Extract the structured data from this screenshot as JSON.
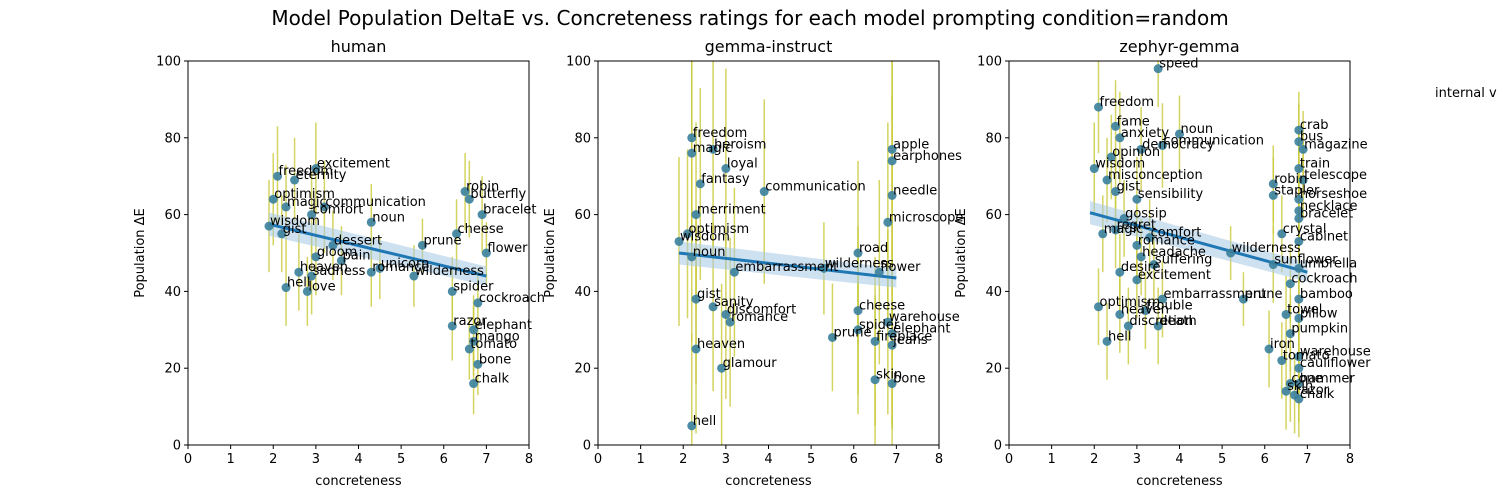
{
  "figure": {
    "suptitle": "Model Population DeltaE vs. Concreteness ratings for each model prompting condition=random",
    "overflow_text": "internal v",
    "colors": {
      "point": "#3a7f9c",
      "errorbar": "#c9c93a",
      "line": "#1f77b4",
      "band": "#a6c8e6"
    }
  },
  "chart_data": [
    {
      "type": "scatter",
      "title": "human",
      "xlabel": "concreteness",
      "ylabel": "Population ΔE",
      "xlim": [
        0,
        8
      ],
      "ylim": [
        0,
        100
      ],
      "xticks": [
        0,
        1,
        2,
        3,
        4,
        5,
        6,
        7,
        8
      ],
      "yticks": [
        0,
        20,
        40,
        60,
        80,
        100
      ],
      "regression": {
        "x": [
          1.9,
          7.0
        ],
        "y": [
          57.5,
          44.0
        ]
      },
      "points": [
        {
          "x": 2.1,
          "y": 70,
          "err": 13,
          "label": "freedom"
        },
        {
          "x": 3.0,
          "y": 72,
          "err": 12,
          "label": "excitement"
        },
        {
          "x": 2.5,
          "y": 69,
          "err": 11,
          "label": "eternity"
        },
        {
          "x": 2.0,
          "y": 64,
          "err": 12,
          "label": "optimism"
        },
        {
          "x": 2.3,
          "y": 62,
          "err": 11,
          "label": "magic"
        },
        {
          "x": 3.2,
          "y": 62,
          "err": 12,
          "label": "communication"
        },
        {
          "x": 2.9,
          "y": 60,
          "err": 11,
          "label": "comfort"
        },
        {
          "x": 1.9,
          "y": 57,
          "err": 12,
          "label": "wisdom"
        },
        {
          "x": 2.2,
          "y": 55,
          "err": 10,
          "label": "gist"
        },
        {
          "x": 4.3,
          "y": 58,
          "err": 10,
          "label": "noun"
        },
        {
          "x": 3.4,
          "y": 52,
          "err": 9,
          "label": "dessert"
        },
        {
          "x": 3.6,
          "y": 48,
          "err": 9,
          "label": "pain"
        },
        {
          "x": 3.0,
          "y": 49,
          "err": 10,
          "label": "gloom"
        },
        {
          "x": 2.6,
          "y": 45,
          "err": 10,
          "label": "heaven"
        },
        {
          "x": 2.9,
          "y": 44,
          "err": 10,
          "label": "sadness"
        },
        {
          "x": 4.3,
          "y": 45,
          "err": 9,
          "label": "romance"
        },
        {
          "x": 4.5,
          "y": 46,
          "err": 8,
          "label": "unicorn"
        },
        {
          "x": 2.3,
          "y": 41,
          "err": 10,
          "label": "hell"
        },
        {
          "x": 2.8,
          "y": 40,
          "err": 9,
          "label": "love"
        },
        {
          "x": 5.5,
          "y": 52,
          "err": 7,
          "label": "prune"
        },
        {
          "x": 5.3,
          "y": 44,
          "err": 8,
          "label": "wilderness"
        },
        {
          "x": 6.5,
          "y": 66,
          "err": 10,
          "label": "robin"
        },
        {
          "x": 6.6,
          "y": 64,
          "err": 10,
          "label": "butterfly"
        },
        {
          "x": 6.9,
          "y": 60,
          "err": 10,
          "label": "bracelet"
        },
        {
          "x": 6.3,
          "y": 55,
          "err": 9,
          "label": "cheese"
        },
        {
          "x": 6.2,
          "y": 40,
          "err": 9,
          "label": "spider"
        },
        {
          "x": 6.8,
          "y": 37,
          "err": 9,
          "label": "cockroach"
        },
        {
          "x": 6.2,
          "y": 31,
          "err": 9,
          "label": "razor"
        },
        {
          "x": 6.7,
          "y": 30,
          "err": 9,
          "label": "elephant"
        },
        {
          "x": 6.7,
          "y": 27,
          "err": 9,
          "label": "mango"
        },
        {
          "x": 6.6,
          "y": 25,
          "err": 8,
          "label": "tomato"
        },
        {
          "x": 6.8,
          "y": 21,
          "err": 8,
          "label": "bone"
        },
        {
          "x": 6.7,
          "y": 16,
          "err": 8,
          "label": "chalk"
        },
        {
          "x": 7.0,
          "y": 50,
          "err": 8,
          "label": "flower"
        }
      ]
    },
    {
      "type": "scatter",
      "title": "gemma-instruct",
      "xlabel": "concreteness",
      "ylabel": "Population ΔE",
      "xlim": [
        0,
        8
      ],
      "ylim": [
        0,
        100
      ],
      "xticks": [
        0,
        1,
        2,
        3,
        4,
        5,
        6,
        7,
        8
      ],
      "yticks": [
        0,
        20,
        40,
        60,
        80,
        100
      ],
      "regression": {
        "x": [
          1.9,
          7.0
        ],
        "y": [
          50.0,
          43.5
        ]
      },
      "points": [
        {
          "x": 2.2,
          "y": 80,
          "err": 28,
          "label": "freedom"
        },
        {
          "x": 2.2,
          "y": 76,
          "err": 28,
          "label": "magic"
        },
        {
          "x": 2.7,
          "y": 77,
          "err": 26,
          "label": "heroism"
        },
        {
          "x": 3.0,
          "y": 72,
          "err": 26,
          "label": "loyal"
        },
        {
          "x": 2.4,
          "y": 68,
          "err": 25,
          "label": "fantasy"
        },
        {
          "x": 3.9,
          "y": 66,
          "err": 24,
          "label": "communication"
        },
        {
          "x": 2.3,
          "y": 60,
          "err": 24,
          "label": "merriment"
        },
        {
          "x": 2.1,
          "y": 55,
          "err": 22,
          "label": "optimism"
        },
        {
          "x": 1.9,
          "y": 53,
          "err": 22,
          "label": "wisdom"
        },
        {
          "x": 2.2,
          "y": 49,
          "err": 22,
          "label": "noun"
        },
        {
          "x": 3.2,
          "y": 45,
          "err": 22,
          "label": "embarrassment"
        },
        {
          "x": 2.3,
          "y": 38,
          "err": 22,
          "label": "gist"
        },
        {
          "x": 2.7,
          "y": 36,
          "err": 22,
          "label": "sanity"
        },
        {
          "x": 3.0,
          "y": 34,
          "err": 22,
          "label": "discomfort"
        },
        {
          "x": 3.1,
          "y": 32,
          "err": 22,
          "label": "romance"
        },
        {
          "x": 2.3,
          "y": 25,
          "err": 22,
          "label": "heaven"
        },
        {
          "x": 2.9,
          "y": 20,
          "err": 22,
          "label": "glamour"
        },
        {
          "x": 2.2,
          "y": 5,
          "err": 24,
          "label": "hell"
        },
        {
          "x": 5.5,
          "y": 28,
          "err": 14,
          "label": "prune"
        },
        {
          "x": 5.3,
          "y": 46,
          "err": 12,
          "label": "wilderness"
        },
        {
          "x": 6.9,
          "y": 77,
          "err": 28,
          "label": "apple"
        },
        {
          "x": 6.9,
          "y": 74,
          "err": 28,
          "label": "earphones"
        },
        {
          "x": 6.9,
          "y": 65,
          "err": 26,
          "label": "needle"
        },
        {
          "x": 6.8,
          "y": 58,
          "err": 26,
          "label": "microscope"
        },
        {
          "x": 6.1,
          "y": 50,
          "err": 24,
          "label": "road"
        },
        {
          "x": 6.6,
          "y": 45,
          "err": 24,
          "label": "flower"
        },
        {
          "x": 6.1,
          "y": 35,
          "err": 22,
          "label": "cheese"
        },
        {
          "x": 6.1,
          "y": 30,
          "err": 22,
          "label": "spider"
        },
        {
          "x": 6.8,
          "y": 32,
          "err": 24,
          "label": "warehouse"
        },
        {
          "x": 6.9,
          "y": 29,
          "err": 24,
          "label": "elephant"
        },
        {
          "x": 6.5,
          "y": 27,
          "err": 22,
          "label": "fireplace"
        },
        {
          "x": 6.9,
          "y": 26,
          "err": 22,
          "label": "jeans"
        },
        {
          "x": 6.5,
          "y": 17,
          "err": 22,
          "label": "skin"
        },
        {
          "x": 6.9,
          "y": 16,
          "err": 22,
          "label": "bone"
        }
      ]
    },
    {
      "type": "scatter",
      "title": "zephyr-gemma",
      "xlabel": "concreteness",
      "ylabel": "Population ΔE",
      "xlim": [
        0,
        8
      ],
      "ylim": [
        0,
        100
      ],
      "xticks": [
        0,
        1,
        2,
        3,
        4,
        5,
        6,
        7,
        8
      ],
      "yticks": [
        0,
        20,
        40,
        60,
        80,
        100
      ],
      "regression": {
        "x": [
          1.9,
          7.0
        ],
        "y": [
          60.5,
          45.0
        ]
      },
      "points": [
        {
          "x": 3.5,
          "y": 98,
          "err": 10,
          "label": "speed"
        },
        {
          "x": 2.1,
          "y": 88,
          "err": 12,
          "label": "freedom"
        },
        {
          "x": 2.5,
          "y": 83,
          "err": 12,
          "label": "fame"
        },
        {
          "x": 2.6,
          "y": 80,
          "err": 12,
          "label": "anxiety"
        },
        {
          "x": 4.0,
          "y": 81,
          "err": 10,
          "label": "noun"
        },
        {
          "x": 3.6,
          "y": 78,
          "err": 11,
          "label": "communication"
        },
        {
          "x": 3.1,
          "y": 77,
          "err": 11,
          "label": "democracy"
        },
        {
          "x": 2.4,
          "y": 75,
          "err": 11,
          "label": "opinion"
        },
        {
          "x": 2.0,
          "y": 72,
          "err": 12,
          "label": "wisdom"
        },
        {
          "x": 2.3,
          "y": 69,
          "err": 11,
          "label": "misconception"
        },
        {
          "x": 2.5,
          "y": 66,
          "err": 11,
          "label": "gist"
        },
        {
          "x": 3.0,
          "y": 64,
          "err": 11,
          "label": "sensibility"
        },
        {
          "x": 2.7,
          "y": 59,
          "err": 10,
          "label": "gossip"
        },
        {
          "x": 2.2,
          "y": 55,
          "err": 10,
          "label": "magic"
        },
        {
          "x": 2.5,
          "y": 56,
          "err": 10,
          "label": "regret"
        },
        {
          "x": 3.3,
          "y": 54,
          "err": 10,
          "label": "comfort"
        },
        {
          "x": 3.0,
          "y": 52,
          "err": 10,
          "label": "romance"
        },
        {
          "x": 3.1,
          "y": 49,
          "err": 10,
          "label": "headache"
        },
        {
          "x": 3.4,
          "y": 47,
          "err": 10,
          "label": "suffering"
        },
        {
          "x": 2.6,
          "y": 45,
          "err": 10,
          "label": "desire"
        },
        {
          "x": 3.0,
          "y": 43,
          "err": 10,
          "label": "excitement"
        },
        {
          "x": 3.6,
          "y": 38,
          "err": 10,
          "label": "embarrassment"
        },
        {
          "x": 3.2,
          "y": 35,
          "err": 10,
          "label": "trouble"
        },
        {
          "x": 2.1,
          "y": 36,
          "err": 10,
          "label": "optimism"
        },
        {
          "x": 2.6,
          "y": 34,
          "err": 10,
          "label": "heaven"
        },
        {
          "x": 2.8,
          "y": 31,
          "err": 10,
          "label": "discretion"
        },
        {
          "x": 3.5,
          "y": 31,
          "err": 10,
          "label": "death"
        },
        {
          "x": 2.3,
          "y": 27,
          "err": 10,
          "label": "hell"
        },
        {
          "x": 5.2,
          "y": 50,
          "err": 7,
          "label": "wilderness"
        },
        {
          "x": 5.5,
          "y": 38,
          "err": 7,
          "label": "prune"
        },
        {
          "x": 6.8,
          "y": 82,
          "err": 10,
          "label": "crab"
        },
        {
          "x": 6.8,
          "y": 79,
          "err": 10,
          "label": "bus"
        },
        {
          "x": 6.9,
          "y": 77,
          "err": 10,
          "label": "magazine"
        },
        {
          "x": 6.8,
          "y": 72,
          "err": 10,
          "label": "train"
        },
        {
          "x": 6.9,
          "y": 69,
          "err": 10,
          "label": "telescope"
        },
        {
          "x": 6.2,
          "y": 68,
          "err": 10,
          "label": "robin"
        },
        {
          "x": 6.2,
          "y": 65,
          "err": 10,
          "label": "stapler"
        },
        {
          "x": 6.8,
          "y": 64,
          "err": 10,
          "label": "horseshoe"
        },
        {
          "x": 6.8,
          "y": 61,
          "err": 10,
          "label": "necklace"
        },
        {
          "x": 6.8,
          "y": 59,
          "err": 10,
          "label": "bracelet"
        },
        {
          "x": 6.4,
          "y": 55,
          "err": 10,
          "label": "crystal"
        },
        {
          "x": 6.8,
          "y": 53,
          "err": 10,
          "label": "cabinet"
        },
        {
          "x": 6.2,
          "y": 47,
          "err": 10,
          "label": "sunflower"
        },
        {
          "x": 6.8,
          "y": 46,
          "err": 10,
          "label": "umbrella"
        },
        {
          "x": 6.6,
          "y": 42,
          "err": 10,
          "label": "cockroach"
        },
        {
          "x": 6.8,
          "y": 38,
          "err": 10,
          "label": "bamboo"
        },
        {
          "x": 6.5,
          "y": 34,
          "err": 10,
          "label": "towel"
        },
        {
          "x": 6.8,
          "y": 33,
          "err": 10,
          "label": "pillow"
        },
        {
          "x": 6.6,
          "y": 29,
          "err": 10,
          "label": "pumpkin"
        },
        {
          "x": 6.1,
          "y": 25,
          "err": 10,
          "label": "iron"
        },
        {
          "x": 6.4,
          "y": 22,
          "err": 10,
          "label": "tomato"
        },
        {
          "x": 6.8,
          "y": 23,
          "err": 10,
          "label": "warehouse"
        },
        {
          "x": 6.8,
          "y": 20,
          "err": 10,
          "label": "cauliflower"
        },
        {
          "x": 6.6,
          "y": 16,
          "err": 10,
          "label": "cone"
        },
        {
          "x": 6.8,
          "y": 16,
          "err": 10,
          "label": "hammer"
        },
        {
          "x": 6.5,
          "y": 14,
          "err": 10,
          "label": "skin"
        },
        {
          "x": 6.7,
          "y": 13,
          "err": 10,
          "label": "razor"
        },
        {
          "x": 6.8,
          "y": 12,
          "err": 10,
          "label": "chalk"
        }
      ]
    }
  ]
}
